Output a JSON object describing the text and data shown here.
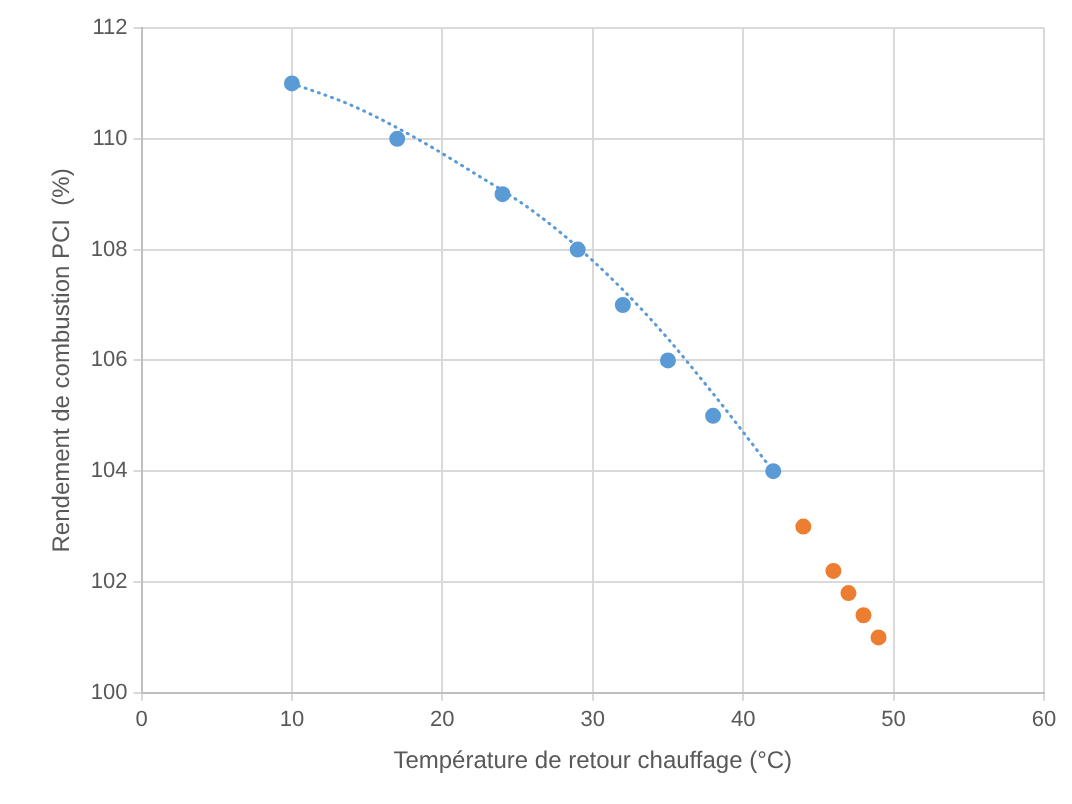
{
  "chart_data": {
    "type": "scatter",
    "xlabel": "Température de retour chauffage (°C)",
    "ylabel": "Rendement de combustion PCI  (%)",
    "xlim": [
      0,
      60
    ],
    "xticks": [
      0,
      10,
      20,
      30,
      40,
      50,
      60
    ],
    "ylim": [
      100,
      112
    ],
    "yticks": [
      100,
      102,
      104,
      106,
      108,
      110,
      112
    ],
    "grid": true,
    "series": [
      {
        "color": "#5b9bd5",
        "marker": "circle",
        "x": [
          10,
          17,
          24,
          29,
          32,
          35,
          38,
          42
        ],
        "values": [
          111,
          110,
          109,
          108,
          107,
          106,
          105,
          104
        ]
      },
      {
        "color": "#ed7d31",
        "marker": "circle",
        "x": [
          44,
          46,
          47,
          48,
          49
        ],
        "values": [
          103,
          102.2,
          101.8,
          101.4,
          101.0
        ]
      },
      {
        "type": "line",
        "color": "#5b9bd5",
        "marker": "none",
        "line_style": "dotted",
        "x": [
          10,
          14,
          18,
          22,
          26,
          30,
          34,
          38,
          42
        ],
        "values": [
          111,
          110.6,
          110.05,
          109.4,
          108.7,
          107.8,
          106.7,
          105.4,
          104
        ]
      }
    ]
  }
}
